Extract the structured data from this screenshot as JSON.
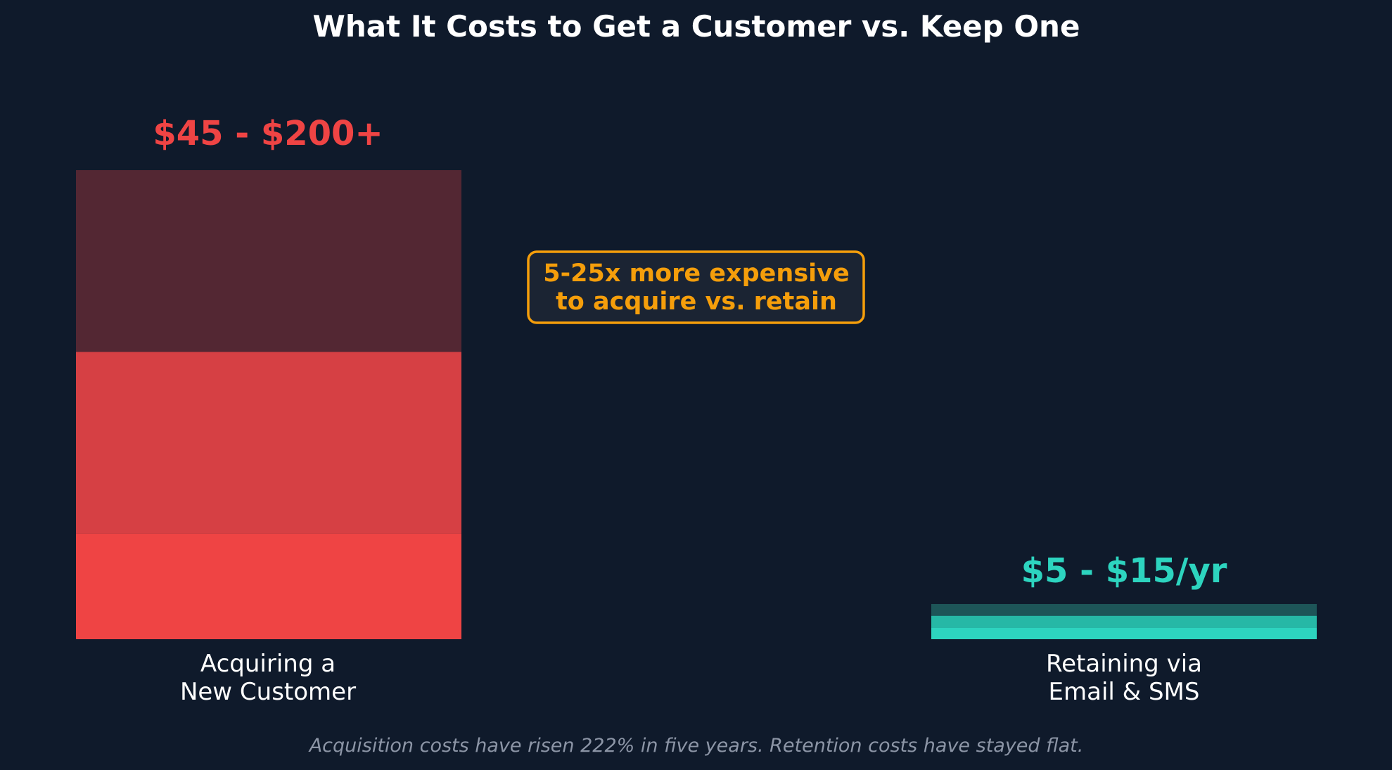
{
  "chart_data": {
    "type": "bar",
    "title": "What It Costs to Get a Customer vs. Keep One",
    "categories": [
      "Acquiring a\nNew Customer",
      "Retaining via\nEmail & SMS"
    ],
    "value_labels": [
      "$45 - $200+",
      "$5 - $15/yr"
    ],
    "ylim": [
      0,
      200
    ],
    "stacks": [
      {
        "category": "Acquiring a\nNew Customer",
        "segments": [
          {
            "from": 0,
            "to": 45,
            "color": "#ef4444"
          },
          {
            "from": 45,
            "to": 122.5,
            "color": "#d64044"
          },
          {
            "from": 122.5,
            "to": 200,
            "color": "#532733"
          }
        ]
      },
      {
        "category": "Retaining via\nEmail & SMS",
        "segments": [
          {
            "from": 0,
            "to": 5,
            "color": "#2dd4bf"
          },
          {
            "from": 5,
            "to": 10,
            "color": "#26b8a6"
          },
          {
            "from": 10,
            "to": 15,
            "color": "#1d5558"
          }
        ]
      }
    ],
    "annotation": "5-25x more expensive\nto acquire vs. retain",
    "footnote": "Acquisition costs have risen 222% in five years. Retention costs have stayed flat.",
    "grid": false,
    "legend": "none"
  },
  "colors": {
    "background": "#0f1a2b",
    "acquire_label": "#ef4444",
    "retain_label": "#2dd4bf",
    "annotation": "#f59e0b",
    "annotation_fill": "#1b2433",
    "title": "#ffffff",
    "category_label": "#ffffff",
    "footnote": "#8c95a6"
  }
}
